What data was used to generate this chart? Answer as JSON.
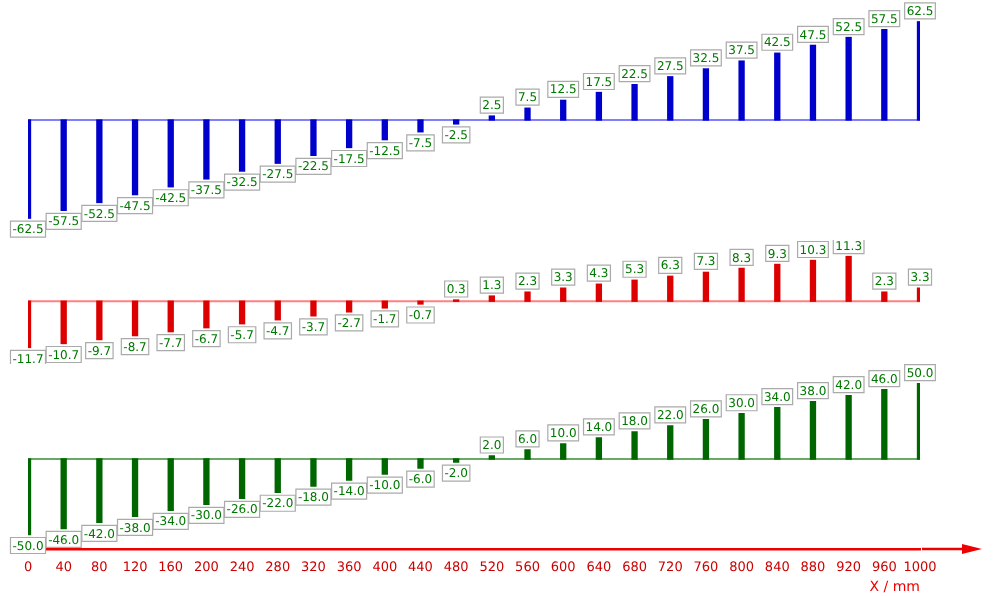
{
  "chart_data": [
    {
      "type": "bar",
      "color": "#0000cc",
      "tick_labels": false,
      "xlim": [
        0,
        1000
      ],
      "xticks": [
        0,
        40,
        80,
        120,
        160,
        200,
        240,
        280,
        320,
        360,
        400,
        440,
        480,
        520,
        560,
        600,
        640,
        680,
        720,
        760,
        800,
        840,
        880,
        920,
        960,
        1000
      ],
      "ref_lines": [
        {
          "axis": "y",
          "value": 0,
          "color": "#8080ff"
        }
      ],
      "x": [
        0,
        40,
        80,
        120,
        160,
        200,
        240,
        280,
        320,
        360,
        400,
        440,
        480,
        520,
        560,
        600,
        640,
        680,
        720,
        760,
        800,
        840,
        880,
        920,
        960,
        1000
      ],
      "values": [
        -62.5,
        -57.5,
        -52.5,
        -47.5,
        -42.5,
        -37.5,
        -32.5,
        -27.5,
        -22.5,
        -17.5,
        -12.5,
        -7.5,
        -2.5,
        2.5,
        7.5,
        12.5,
        17.5,
        22.5,
        27.5,
        32.5,
        37.5,
        42.5,
        47.5,
        52.5,
        57.5,
        62.5
      ],
      "value_labels": [
        "-62.5",
        "-57.5",
        "-52.5",
        "-47.5",
        "-42.5",
        "-37.5",
        "-32.5",
        "-27.5",
        "-22.5",
        "-17.5",
        "-12.5",
        "-7.5",
        "-2.5",
        "2.5",
        "7.5",
        "12.5",
        "17.5",
        "22.5",
        "27.5",
        "32.5",
        "37.5",
        "42.5",
        "47.5",
        "52.5",
        "57.5",
        "62.5"
      ]
    },
    {
      "type": "bar",
      "color": "#dd0000",
      "tick_labels": false,
      "xlim": [
        0,
        1000
      ],
      "xticks": [
        0,
        40,
        80,
        120,
        160,
        200,
        240,
        280,
        320,
        360,
        400,
        440,
        480,
        520,
        560,
        600,
        640,
        680,
        720,
        760,
        800,
        840,
        880,
        920,
        960,
        1000
      ],
      "ref_lines": [
        {
          "axis": "y",
          "value": 0,
          "color": "#ff8080"
        }
      ],
      "x": [
        0,
        40,
        80,
        120,
        160,
        200,
        240,
        280,
        320,
        360,
        400,
        440,
        480,
        520,
        560,
        600,
        640,
        680,
        720,
        760,
        800,
        840,
        880,
        920,
        960,
        1000
      ],
      "values": [
        -11.7,
        -10.7,
        -9.7,
        -8.7,
        -7.7,
        -6.7,
        -5.7,
        -4.7,
        -3.7,
        -2.7,
        -1.7,
        -0.7,
        0.3,
        1.3,
        2.3,
        3.3,
        4.3,
        5.3,
        6.3,
        7.3,
        8.3,
        9.3,
        10.3,
        11.3,
        2.3,
        3.3
      ],
      "value_labels": [
        "-11.7",
        "-10.7",
        "-9.7",
        "-8.7",
        "-7.7",
        "-6.7",
        "-5.7",
        "-4.7",
        "-3.7",
        "-2.7",
        "-1.7",
        "-0.7",
        "0.3",
        "1.3",
        "2.3",
        "3.3",
        "4.3",
        "5.3",
        "6.3",
        "7.3",
        "8.3",
        "9.3",
        "10.3",
        "11.3",
        "2.3",
        "3.3"
      ]
    },
    {
      "type": "bar",
      "color": "#006600",
      "xlabel": "X / mm",
      "xlim": [
        0,
        1000
      ],
      "xticks": [
        0,
        40,
        80,
        120,
        160,
        200,
        240,
        280,
        320,
        360,
        400,
        440,
        480,
        520,
        560,
        600,
        640,
        680,
        720,
        760,
        800,
        840,
        880,
        920,
        960,
        1000
      ],
      "ref_lines": [
        {
          "axis": "y",
          "value": 0,
          "color": "#66aa66"
        }
      ],
      "x": [
        0,
        40,
        80,
        120,
        160,
        200,
        240,
        280,
        320,
        360,
        400,
        440,
        480,
        520,
        560,
        600,
        640,
        680,
        720,
        760,
        800,
        840,
        880,
        920,
        960,
        1000
      ],
      "values": [
        -50,
        -46,
        -42,
        -38,
        -34,
        -30,
        -26,
        -22,
        -18,
        -14,
        -10,
        -6,
        -2,
        2,
        6,
        10,
        14,
        18,
        22,
        26,
        30,
        34,
        38,
        42,
        46,
        50
      ],
      "value_labels": [
        "-50.0",
        "-46.0",
        "-42.0",
        "-38.0",
        "-34.0",
        "-30.0",
        "-26.0",
        "-22.0",
        "-18.0",
        "-14.0",
        "-10.0",
        "-6.0",
        "-2.0",
        "2.0",
        "6.0",
        "10.0",
        "14.0",
        "18.0",
        "22.0",
        "26.0",
        "30.0",
        "34.0",
        "38.0",
        "42.0",
        "46.0",
        "50.0"
      ]
    }
  ]
}
